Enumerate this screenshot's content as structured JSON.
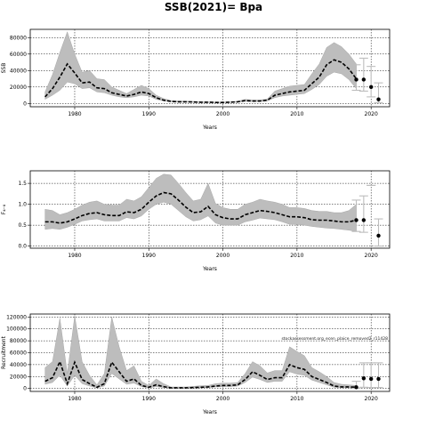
{
  "title": "SSB(2021)= Bpa",
  "chart_data": [
    {
      "type": "area",
      "ylabel": "SSB",
      "xlabel": "Years",
      "xlim": [
        1974,
        2022.5
      ],
      "ylim": [
        -4000,
        90000
      ],
      "xticks": [
        1980,
        1990,
        2000,
        2010,
        2020
      ],
      "yticks": [
        0,
        20000,
        40000,
        60000,
        80000
      ],
      "ytick_labels": [
        "0",
        "20000",
        "40000",
        "60000",
        "80000"
      ],
      "grid": true,
      "series": [
        {
          "years": [
            1976,
            1977,
            1978,
            1979,
            1980,
            1981,
            1982,
            1983,
            1984,
            1985,
            1986,
            1987,
            1988,
            1989,
            1990,
            1991,
            1992,
            1993,
            1994,
            1995,
            1996,
            1997,
            1998,
            1999,
            2000,
            2001,
            2002,
            2003,
            2004,
            2005,
            2006,
            2007,
            2008,
            2009,
            2010,
            2011,
            2012,
            2013,
            2014,
            2015,
            2016,
            2017,
            2018
          ],
          "median": [
            8000,
            18000,
            32000,
            48000,
            37000,
            25000,
            26000,
            19000,
            18000,
            13000,
            11000,
            9000,
            11000,
            14000,
            12000,
            7000,
            4000,
            2500,
            2000,
            2000,
            1800,
            1500,
            1500,
            1200,
            1200,
            1500,
            2000,
            3500,
            3000,
            3000,
            4000,
            10000,
            12000,
            14000,
            15000,
            16000,
            24000,
            32000,
            47000,
            53000,
            50000,
            42000,
            30000
          ],
          "lower": [
            5000,
            10000,
            16000,
            26000,
            24000,
            18000,
            19000,
            14000,
            13000,
            10000,
            8000,
            7000,
            8000,
            10000,
            9000,
            5000,
            3000,
            2000,
            1500,
            1500,
            1300,
            1100,
            1100,
            900,
            900,
            1100,
            1500,
            2500,
            2200,
            2200,
            3000,
            7000,
            9000,
            10000,
            11000,
            12000,
            17000,
            23000,
            33000,
            38000,
            36000,
            29000,
            18000
          ],
          "upper": [
            14000,
            35000,
            62000,
            87000,
            60000,
            38000,
            40000,
            30000,
            29000,
            20000,
            16000,
            12000,
            17000,
            22000,
            18000,
            10000,
            6000,
            3500,
            3000,
            2800,
            2500,
            2000,
            2000,
            1700,
            1700,
            2000,
            2700,
            5000,
            4200,
            4200,
            5500,
            15000,
            18000,
            21000,
            22000,
            23000,
            36000,
            48000,
            68000,
            74000,
            69000,
            60000,
            48000
          ]
        }
      ],
      "forecast": [
        {
          "year": 2018,
          "point": 29000,
          "lower": 16000,
          "upper": 47000
        },
        {
          "year": 2019,
          "point": 29000,
          "lower": 15000,
          "upper": 55000
        },
        {
          "year": 2020,
          "point": 20000,
          "lower": 8000,
          "upper": 45000
        },
        {
          "year": 2021,
          "point": 5000,
          "lower": 1000,
          "upper": 25000
        }
      ]
    },
    {
      "type": "area",
      "ylabel": "F₄₋₈",
      "xlabel": "Years",
      "xlim": [
        1974,
        2022.5
      ],
      "ylim": [
        -0.05,
        1.8
      ],
      "xticks": [
        1980,
        1990,
        2000,
        2010,
        2020
      ],
      "yticks": [
        0,
        0.5,
        1.0,
        1.5
      ],
      "ytick_labels": [
        "0.0",
        "0.5",
        "1.0",
        "1.5"
      ],
      "grid": true,
      "series": [
        {
          "years": [
            1976,
            1977,
            1978,
            1979,
            1980,
            1981,
            1982,
            1983,
            1984,
            1985,
            1986,
            1987,
            1988,
            1989,
            1990,
            1991,
            1992,
            1993,
            1994,
            1995,
            1996,
            1997,
            1998,
            1999,
            2000,
            2001,
            2002,
            2003,
            2004,
            2005,
            2006,
            2007,
            2008,
            2009,
            2010,
            2011,
            2012,
            2013,
            2014,
            2015,
            2016,
            2017,
            2018
          ],
          "median": [
            0.58,
            0.58,
            0.55,
            0.58,
            0.65,
            0.73,
            0.78,
            0.8,
            0.75,
            0.73,
            0.73,
            0.82,
            0.8,
            0.88,
            1.05,
            1.2,
            1.28,
            1.25,
            1.1,
            0.93,
            0.8,
            0.82,
            0.95,
            0.75,
            0.68,
            0.65,
            0.65,
            0.75,
            0.8,
            0.85,
            0.83,
            0.8,
            0.75,
            0.7,
            0.7,
            0.68,
            0.63,
            0.62,
            0.62,
            0.6,
            0.58,
            0.58,
            0.62
          ],
          "lower": [
            0.4,
            0.42,
            0.4,
            0.45,
            0.52,
            0.6,
            0.63,
            0.65,
            0.6,
            0.6,
            0.6,
            0.68,
            0.65,
            0.72,
            0.88,
            1.0,
            1.05,
            1.0,
            0.85,
            0.7,
            0.6,
            0.63,
            0.72,
            0.55,
            0.5,
            0.5,
            0.5,
            0.58,
            0.62,
            0.67,
            0.65,
            0.63,
            0.58,
            0.52,
            0.52,
            0.5,
            0.47,
            0.45,
            0.43,
            0.42,
            0.4,
            0.38,
            0.35
          ],
          "upper": [
            0.88,
            0.85,
            0.75,
            0.8,
            0.88,
            0.98,
            1.05,
            1.08,
            1.0,
            0.98,
            0.98,
            1.12,
            1.08,
            1.18,
            1.4,
            1.62,
            1.72,
            1.7,
            1.5,
            1.28,
            1.08,
            1.12,
            1.5,
            1.02,
            0.92,
            0.88,
            0.88,
            1.0,
            1.05,
            1.12,
            1.08,
            1.05,
            1.0,
            0.92,
            0.92,
            0.9,
            0.85,
            0.83,
            0.83,
            0.8,
            0.8,
            0.85,
            1.0
          ]
        }
      ],
      "forecast": [
        {
          "year": 2018,
          "point": 0.62,
          "lower": 0.35,
          "upper": 1.1
        },
        {
          "year": 2019,
          "point": 0.62,
          "lower": 0.33,
          "upper": 1.2
        },
        {
          "year": 2020,
          "point": 1.45,
          "lower": 1.45,
          "upper": 1.45
        },
        {
          "year": 2021,
          "point": 0.25,
          "lower": 0.0,
          "upper": 0.65
        }
      ]
    },
    {
      "type": "area",
      "ylabel": "Recruitment",
      "xlabel": "Years",
      "annotation": "stockassessment.org_ecen_plaice_removed2_r11428",
      "xlim": [
        1974,
        2022.5
      ],
      "ylim": [
        -5000,
        125000
      ],
      "xticks": [
        1980,
        1990,
        2000,
        2010,
        2020
      ],
      "yticks": [
        0,
        20000,
        40000,
        60000,
        80000,
        100000,
        120000
      ],
      "ytick_labels": [
        "0",
        "20000",
        "40000",
        "60000",
        "80000",
        "100000",
        "120000"
      ],
      "grid": true,
      "series": [
        {
          "years": [
            1976,
            1977,
            1978,
            1979,
            1980,
            1981,
            1982,
            1983,
            1984,
            1985,
            1986,
            1987,
            1988,
            1989,
            1990,
            1991,
            1992,
            1993,
            1994,
            1995,
            1996,
            1997,
            1998,
            1999,
            2000,
            2001,
            2002,
            2003,
            2004,
            2005,
            2006,
            2007,
            2008,
            2009,
            2010,
            2011,
            2012,
            2013,
            2014,
            2015,
            2016,
            2017,
            2018
          ],
          "median": [
            12000,
            18000,
            45000,
            8000,
            44000,
            15000,
            8000,
            2000,
            8000,
            44000,
            28000,
            12000,
            16000,
            5000,
            2000,
            6000,
            3000,
            1000,
            1000,
            1000,
            1500,
            2000,
            2500,
            4000,
            5000,
            5000,
            6000,
            15000,
            28000,
            22000,
            15000,
            18000,
            18000,
            40000,
            35000,
            32000,
            20000,
            15000,
            10000,
            4000,
            2500,
            2500,
            2000
          ],
          "lower": [
            7000,
            10000,
            22000,
            4000,
            22000,
            8000,
            4000,
            1000,
            4000,
            25000,
            16000,
            7000,
            9000,
            3000,
            1000,
            3000,
            1500,
            500,
            500,
            500,
            800,
            1000,
            1500,
            2500,
            3000,
            3000,
            4000,
            10000,
            19000,
            15000,
            10000,
            12000,
            12000,
            28000,
            24000,
            22000,
            14000,
            10000,
            6000,
            2000,
            1200,
            1000,
            800
          ],
          "upper": [
            35000,
            45000,
            118000,
            25000,
            122000,
            45000,
            22000,
            6000,
            25000,
            120000,
            70000,
            30000,
            38000,
            12000,
            5000,
            16000,
            8000,
            2500,
            2500,
            2500,
            3500,
            4500,
            5000,
            8000,
            9000,
            9000,
            10000,
            25000,
            45000,
            38000,
            26000,
            30000,
            30000,
            70000,
            62000,
            55000,
            35000,
            28000,
            20000,
            10000,
            7000,
            6000,
            5000
          ]
        }
      ],
      "forecast": [
        {
          "year": 2018,
          "point": 2000,
          "lower": 300,
          "upper": 12000
        },
        {
          "year": 2019,
          "point": 17000,
          "lower": 2000,
          "upper": 43000
        },
        {
          "year": 2020,
          "point": 16000,
          "lower": 1500,
          "upper": 43000
        },
        {
          "year": 2021,
          "point": 16000,
          "lower": 1500,
          "upper": 43000
        }
      ]
    }
  ]
}
